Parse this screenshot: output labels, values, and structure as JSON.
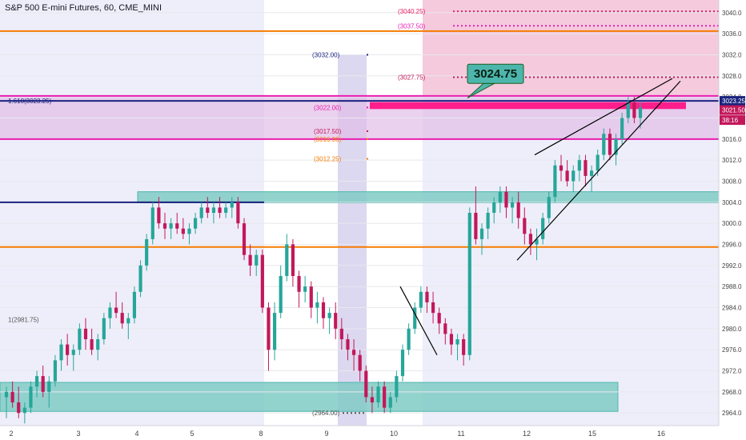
{
  "header": {
    "title": "S&P 500 E-mini Futures, 60, CME_MINI"
  },
  "colors": {
    "up": "#26a69a",
    "down": "#c2185b",
    "orange": "#f57c00",
    "magenta": "#e91eaf",
    "navy": "#1a237e",
    "teal_zone": "#80cbc4",
    "pink_zone": "#f8bbd0",
    "purple_zone": "#e1bee7",
    "callout": "#4db6ac"
  },
  "chart_data": {
    "type": "candlestick",
    "title": "S&P 500 E-mini Futures, 60, CME_MINI",
    "ylim": [
      2961.6,
      3042.4
    ],
    "y_ticks": [
      2964,
      2968,
      2972,
      2976,
      2980,
      2984,
      2988,
      2992,
      2996,
      3000,
      3004,
      3008,
      3012,
      3016,
      3020,
      3024,
      3028,
      3032,
      3036,
      3040
    ],
    "x_ticks": [
      "2",
      "3",
      "4",
      "5",
      "8",
      "9",
      "10",
      "11",
      "12",
      "15",
      "16"
    ],
    "price_tags": [
      {
        "value": 3023.25,
        "label": "3023.25",
        "color": "#1a237e"
      },
      {
        "value": 3021.5,
        "label": "3021.50",
        "color": "#c2185b"
      },
      {
        "value": 3019.6,
        "label": "38:16",
        "color": "#c2185b"
      }
    ],
    "callout": {
      "label": "3024.75",
      "value": 3024.75
    },
    "fib_labels": [
      {
        "label": "(3040.25)",
        "value": 3040.25,
        "color": "#e91e63"
      },
      {
        "label": "(3037.50)",
        "value": 3037.5,
        "color": "#e91eaf"
      },
      {
        "label": "(3032.00)",
        "value": 3032.0,
        "color": "#1a237e"
      },
      {
        "label": "(3027.75)",
        "value": 3027.75,
        "color": "#c2185b"
      },
      {
        "label": "(3022.00)",
        "value": 3022.0,
        "color": "#e91eaf"
      },
      {
        "label": "(3017.50)",
        "value": 3017.5,
        "color": "#c2185b"
      },
      {
        "label": "(3016.00)",
        "value": 3016.0,
        "color": "#f57c00"
      },
      {
        "label": "(3012.25)",
        "value": 3012.25,
        "color": "#f57c00"
      },
      {
        "label": "(2964.00)",
        "value": 2964.0,
        "color": "#555555"
      },
      {
        "label": "1.618(3023.25)",
        "value": 3023.25,
        "color": "#1a237e"
      },
      {
        "label": "1(2981.75)",
        "value": 2981.75,
        "color": "#555555"
      }
    ],
    "levels": [
      {
        "value": 3036.5,
        "color": "#f57c00"
      },
      {
        "value": 2995.5,
        "color": "#f57c00"
      },
      {
        "value": 3023.25,
        "color": "#1a237e"
      },
      {
        "value": 3004.0,
        "color": "#1a237e"
      },
      {
        "value": 3024.2,
        "color": "#e91eaf"
      },
      {
        "value": 3016.0,
        "color": "#e91eaf"
      }
    ],
    "zones": [
      {
        "name": "supply",
        "y1": 3024.2,
        "y2": 3016.0,
        "color": "#e1bee7"
      },
      {
        "name": "upper-target",
        "y1": 3042.4,
        "y2": 3024.2,
        "color": "#f8bbd0"
      },
      {
        "name": "demand-mid",
        "y1": 3006.0,
        "y2": 3003.9,
        "color": "#80cbc4"
      },
      {
        "name": "demand-low",
        "y1": 2969.8,
        "y2": 2964.3,
        "color": "#80cbc4"
      }
    ],
    "ohlc": [
      [
        2967,
        2969,
        2963,
        2968
      ],
      [
        2968,
        2970,
        2965,
        2966
      ],
      [
        2966,
        2969,
        2963,
        2964
      ],
      [
        2964,
        2966,
        2962,
        2965
      ],
      [
        2965,
        2970,
        2964,
        2969
      ],
      [
        2969,
        2972,
        2967,
        2971
      ],
      [
        2971,
        2973,
        2967,
        2968
      ],
      [
        2968,
        2971,
        2965,
        2970
      ],
      [
        2970,
        2975,
        2969,
        2974
      ],
      [
        2974,
        2978,
        2972,
        2977
      ],
      [
        2977,
        2979,
        2973,
        2975
      ],
      [
        2975,
        2977,
        2972,
        2976
      ],
      [
        2976,
        2981,
        2975,
        2980
      ],
      [
        2980,
        2982,
        2976,
        2978
      ],
      [
        2978,
        2980,
        2975,
        2976
      ],
      [
        2976,
        2979,
        2974,
        2978
      ],
      [
        2978,
        2983,
        2977,
        2982
      ],
      [
        2982,
        2985,
        2980,
        2984
      ],
      [
        2984,
        2987,
        2982,
        2983
      ],
      [
        2983,
        2985,
        2980,
        2981
      ],
      [
        2981,
        2983,
        2978,
        2982
      ],
      [
        2982,
        2988,
        2981,
        2987
      ],
      [
        2987,
        2993,
        2986,
        2992
      ],
      [
        2992,
        2998,
        2991,
        2997
      ],
      [
        2997,
        3004,
        2996,
        3003
      ],
      [
        3003,
        3005,
        2999,
        3000
      ],
      [
        3000,
        3002,
        2997,
        2999
      ],
      [
        2999,
        3001,
        2997,
        3000
      ],
      [
        3000,
        3002,
        2998,
        2999
      ],
      [
        2999,
        3001,
        2997,
        2998
      ],
      [
        2998,
        3000,
        2996,
        2999
      ],
      [
        2999,
        3002,
        2998,
        3001
      ],
      [
        3001,
        3004,
        3000,
        3003
      ],
      [
        3003,
        3005,
        3001,
        3002
      ],
      [
        3002,
        3004,
        3000,
        3003
      ],
      [
        3003,
        3005,
        3001,
        3002
      ],
      [
        3002,
        3004,
        3001,
        3003
      ],
      [
        3003,
        3005,
        3001,
        3004
      ],
      [
        3004,
        3005,
        2999,
        3000
      ],
      [
        3000,
        3001,
        2993,
        2994
      ],
      [
        2994,
        2996,
        2990,
        2992
      ],
      [
        2992,
        2995,
        2990,
        2994
      ],
      [
        2994,
        2995,
        2983,
        2984
      ],
      [
        2984,
        2985,
        2972,
        2976
      ],
      [
        2976,
        2985,
        2974,
        2983
      ],
      [
        2983,
        2992,
        2982,
        2990
      ],
      [
        2990,
        2998,
        2989,
        2996
      ],
      [
        2996,
        2997,
        2988,
        2990
      ],
      [
        2990,
        2991,
        2984,
        2987
      ],
      [
        2987,
        2990,
        2985,
        2988
      ],
      [
        2988,
        2989,
        2982,
        2984
      ],
      [
        2984,
        2987,
        2981,
        2985
      ],
      [
        2985,
        2986,
        2980,
        2982
      ],
      [
        2982,
        2984,
        2979,
        2983
      ],
      [
        2983,
        2985,
        2978,
        2980
      ],
      [
        2980,
        2982,
        2976,
        2978
      ],
      [
        2978,
        2979,
        2974,
        2976
      ],
      [
        2976,
        2978,
        2972,
        2975
      ],
      [
        2975,
        2976,
        2970,
        2972
      ],
      [
        2972,
        2973,
        2966,
        2967
      ],
      [
        2967,
        2969,
        2964,
        2966
      ],
      [
        2966,
        2970,
        2965,
        2969
      ],
      [
        2969,
        2970,
        2964,
        2965
      ],
      [
        2965,
        2968,
        2964,
        2967
      ],
      [
        2967,
        2972,
        2966,
        2971
      ],
      [
        2971,
        2977,
        2970,
        2976
      ],
      [
        2976,
        2981,
        2975,
        2980
      ],
      [
        2980,
        2985,
        2979,
        2984
      ],
      [
        2984,
        2988,
        2983,
        2987
      ],
      [
        2987,
        2988,
        2983,
        2985
      ],
      [
        2985,
        2987,
        2981,
        2983
      ],
      [
        2983,
        2984,
        2979,
        2981
      ],
      [
        2981,
        2982,
        2977,
        2979
      ],
      [
        2979,
        2980,
        2975,
        2977
      ],
      [
        2977,
        2979,
        2974,
        2978
      ],
      [
        2978,
        2979,
        2973,
        2975
      ],
      [
        2975,
        3003,
        2974,
        3002
      ],
      [
        3002,
        3007,
        2996,
        2997
      ],
      [
        2997,
        3000,
        2994,
        2999
      ],
      [
        2999,
        3003,
        2997,
        3002
      ],
      [
        3002,
        3005,
        3000,
        3004
      ],
      [
        3004,
        3007,
        3002,
        3006
      ],
      [
        3006,
        3007,
        3001,
        3003
      ],
      [
        3003,
        3005,
        3000,
        3004
      ],
      [
        3004,
        3006,
        2999,
        3001
      ],
      [
        3001,
        3003,
        2996,
        2998
      ],
      [
        2998,
        2999,
        2994,
        2996
      ],
      [
        2996,
        2999,
        2993,
        2997
      ],
      [
        2997,
        3002,
        2996,
        3001
      ],
      [
        3001,
        3006,
        3000,
        3005
      ],
      [
        3005,
        3012,
        3004,
        3011
      ],
      [
        3011,
        3013,
        3008,
        3010
      ],
      [
        3010,
        3012,
        3007,
        3008
      ],
      [
        3008,
        3011,
        3006,
        3010
      ],
      [
        3010,
        3013,
        3008,
        3012
      ],
      [
        3012,
        3013,
        3007,
        3009
      ],
      [
        3009,
        3011,
        3006,
        3010
      ],
      [
        3010,
        3014,
        3009,
        3013
      ],
      [
        3013,
        3018,
        3012,
        3017
      ],
      [
        3017,
        3018,
        3012,
        3013
      ],
      [
        3013,
        3017,
        3011,
        3016
      ],
      [
        3016,
        3021,
        3015,
        3020
      ],
      [
        3020,
        3024,
        3019,
        3023
      ],
      [
        3023,
        3024,
        3019,
        3020
      ],
      [
        3020,
        3023,
        3018,
        3022
      ]
    ]
  }
}
